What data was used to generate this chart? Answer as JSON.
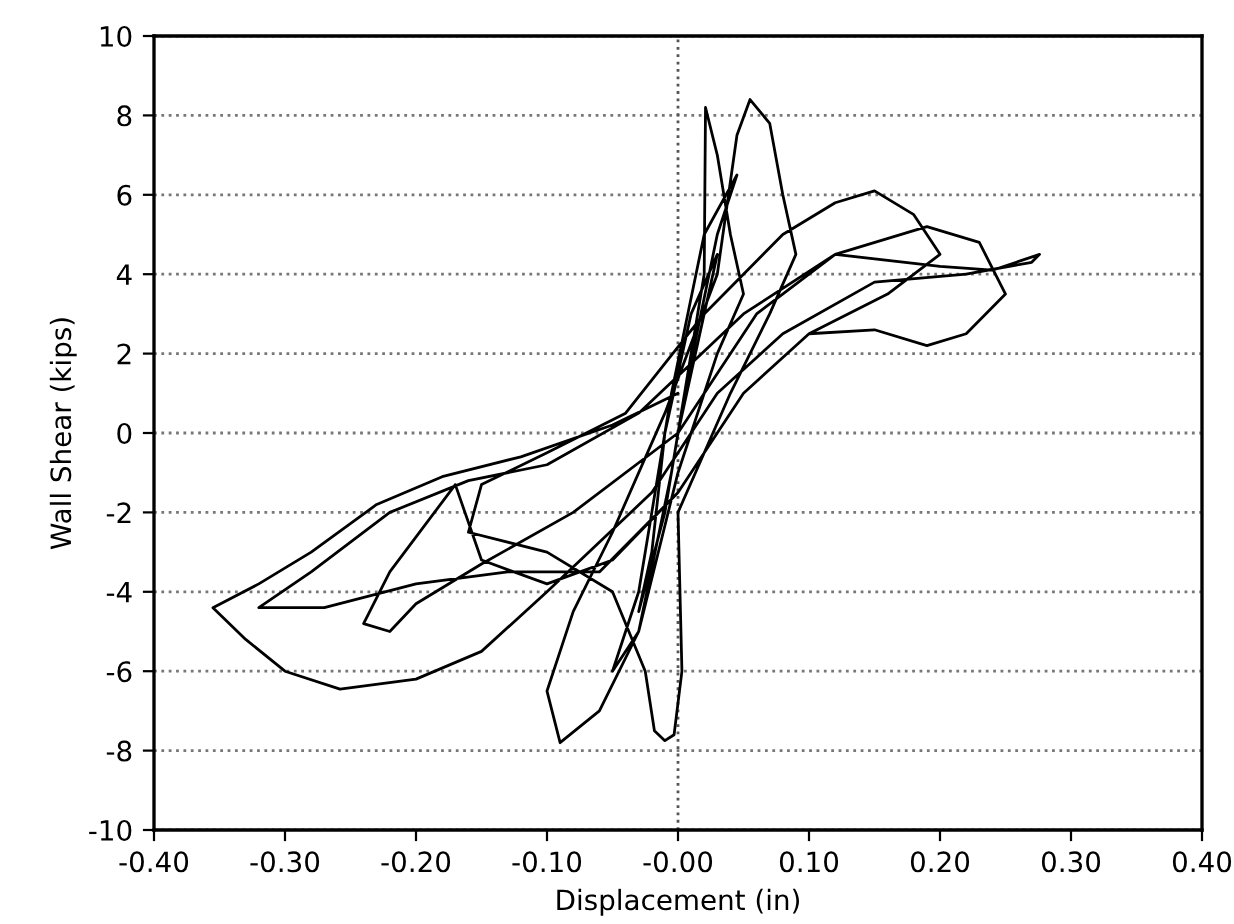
{
  "chart_data": {
    "type": "line",
    "xlabel": "Displacement (in)",
    "ylabel": "Wall Shear (kips)",
    "xlim": [
      -0.4,
      0.4
    ],
    "ylim": [
      -10,
      10
    ],
    "xticks": [
      {
        "value": -0.4,
        "label": "-0.40"
      },
      {
        "value": -0.3,
        "label": "-0.30"
      },
      {
        "value": -0.2,
        "label": "-0.20"
      },
      {
        "value": -0.1,
        "label": "-0.10"
      },
      {
        "value": 0,
        "label": "-0.00"
      },
      {
        "value": 0.1,
        "label": "0.10"
      },
      {
        "value": 0.2,
        "label": "0.20"
      },
      {
        "value": 0.3,
        "label": "0.30"
      },
      {
        "value": 0.4,
        "label": "0.40"
      }
    ],
    "yticks": [
      -10,
      -8,
      -6,
      -4,
      -2,
      0,
      2,
      4,
      6,
      8,
      10
    ],
    "grid": "y",
    "marker": "none",
    "line_style": "solid",
    "ref_lines": [
      {
        "axis": "x",
        "value": 0,
        "line_style": "dotted",
        "color": "#555555"
      }
    ],
    "series": [
      {
        "color": "#000000",
        "x": [
          0,
          0.02,
          0.03,
          0.01,
          -0.01,
          -0.02,
          -0.03,
          -0.01,
          0.005,
          0.03,
          0.045,
          0.02,
          -0.005,
          -0.03,
          -0.05,
          -0.03,
          -0.005,
          0.02,
          0.021,
          0.03,
          0.04,
          0.05,
          0.03,
          0.0,
          -0.03,
          -0.06,
          -0.09,
          -0.1,
          -0.08,
          -0.05,
          -0.01,
          0.03,
          0.045,
          0.055,
          0.07,
          0.08,
          0.09,
          0.07,
          0.04,
          0.0,
          0.003,
          -0.003,
          -0.01,
          -0.018,
          -0.025,
          -0.05,
          -0.1,
          -0.16,
          -0.15,
          -0.1,
          -0.04,
          0.02,
          0.08,
          0.12,
          0.15,
          0.18,
          0.2,
          0.16,
          0.1,
          0.05,
          0.0,
          -0.05,
          -0.1,
          -0.15,
          -0.17,
          -0.22,
          -0.24,
          -0.22,
          -0.2,
          -0.15,
          -0.08,
          0.0,
          0.06,
          0.12,
          0.19,
          0.23,
          0.25,
          0.22,
          0.19,
          0.15,
          0.1,
          0.05,
          0.0,
          -0.06,
          -0.13,
          -0.2,
          -0.27,
          -0.32,
          -0.28,
          -0.22,
          -0.16,
          -0.1,
          -0.03,
          0.05,
          0.12,
          0.2,
          0.24,
          0.276,
          0.27,
          0.22,
          0.15,
          0.08,
          0.03,
          -0.02,
          -0.1,
          -0.15,
          -0.2,
          -0.258,
          -0.3,
          -0.33,
          -0.355,
          -0.32,
          -0.28,
          -0.23,
          -0.18,
          -0.12,
          -0.05,
          0.0
        ],
        "values": [
          0,
          3,
          4.5,
          3,
          0,
          -3,
          -4.5,
          -2,
          1,
          5,
          6.5,
          5,
          1,
          -4,
          -6,
          -5,
          -1,
          4,
          8.2,
          7,
          5,
          3.5,
          2,
          -1,
          -5,
          -7,
          -7.8,
          -6.5,
          -4.5,
          -2.5,
          0.5,
          4,
          7.5,
          8.4,
          7.8,
          6,
          4.5,
          3,
          1,
          -2,
          -6,
          -7.6,
          -7.75,
          -7.5,
          -6,
          -4,
          -3,
          -2.5,
          -1.3,
          -0.5,
          0.5,
          3,
          5,
          5.8,
          6.1,
          5.5,
          4.5,
          3.5,
          2.5,
          1,
          -1.5,
          -3.2,
          -3.8,
          -3.2,
          -1.3,
          -3.5,
          -4.8,
          -5,
          -4.3,
          -3.3,
          -2,
          0,
          3,
          4.5,
          5.2,
          4.8,
          3.5,
          2.5,
          2.2,
          2.6,
          2.5,
          1,
          -1.5,
          -3.5,
          -3.5,
          -3.8,
          -4.4,
          -4.4,
          -3.5,
          -2,
          -1.2,
          -0.8,
          0.5,
          3,
          4.5,
          4.2,
          4.1,
          4.5,
          4.3,
          4,
          3.8,
          2.5,
          1,
          -1.5,
          -4,
          -5.5,
          -6.2,
          -6.45,
          -6,
          -5.2,
          -4.4,
          -3.8,
          -3,
          -1.8,
          -1.1,
          -0.6,
          0.2,
          1
        ]
      }
    ]
  }
}
